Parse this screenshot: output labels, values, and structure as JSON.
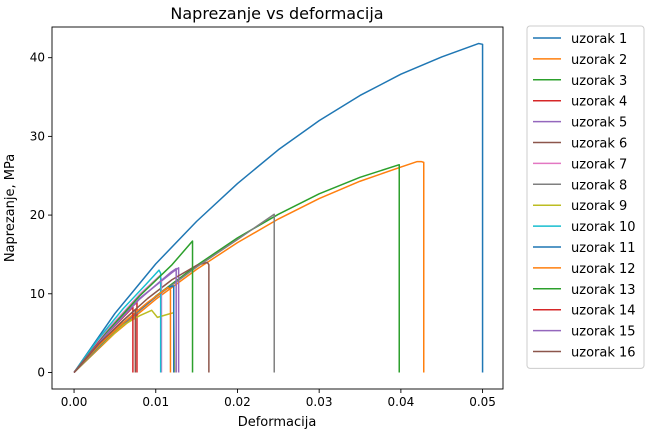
{
  "chart_data": {
    "type": "line",
    "title": "Naprezanje vs deformacija",
    "xlabel": "Deformacija",
    "ylabel": "Naprezanje, MPa",
    "xlim": [
      -0.0027,
      0.0525
    ],
    "ylim": [
      -2.1,
      43.9
    ],
    "xticks": [
      0.0,
      0.01,
      0.02,
      0.03,
      0.04,
      0.05
    ],
    "xtick_labels": [
      "0.00",
      "0.01",
      "0.02",
      "0.03",
      "0.04",
      "0.05"
    ],
    "yticks": [
      0,
      10,
      20,
      30,
      40
    ],
    "ytick_labels": [
      "0",
      "10",
      "20",
      "30",
      "40"
    ],
    "grid": false,
    "legend_position": "outside-right",
    "series": [
      {
        "name": "uzorak 1",
        "color": "#1f77b4",
        "points": [
          [
            0,
            0
          ],
          [
            0.005,
            7.5
          ],
          [
            0.01,
            13.8
          ],
          [
            0.015,
            19.2
          ],
          [
            0.02,
            24.0
          ],
          [
            0.025,
            28.3
          ],
          [
            0.03,
            32.0
          ],
          [
            0.035,
            35.2
          ],
          [
            0.04,
            37.9
          ],
          [
            0.045,
            40.1
          ],
          [
            0.0495,
            41.8
          ],
          [
            0.05,
            41.7
          ],
          [
            0.05,
            0
          ]
        ]
      },
      {
        "name": "uzorak 2",
        "color": "#ff7f0e",
        "points": [
          [
            0,
            0
          ],
          [
            0.005,
            5.0
          ],
          [
            0.01,
            9.3
          ],
          [
            0.015,
            13.1
          ],
          [
            0.02,
            16.5
          ],
          [
            0.025,
            19.5
          ],
          [
            0.03,
            22.1
          ],
          [
            0.035,
            24.3
          ],
          [
            0.04,
            26.1
          ],
          [
            0.042,
            26.8
          ],
          [
            0.0425,
            26.8
          ],
          [
            0.0428,
            26.7
          ],
          [
            0.0428,
            0
          ]
        ]
      },
      {
        "name": "uzorak 3",
        "color": "#2ca02c",
        "points": [
          [
            0,
            0
          ],
          [
            0.005,
            5.2
          ],
          [
            0.01,
            9.7
          ],
          [
            0.015,
            13.6
          ],
          [
            0.02,
            17.1
          ],
          [
            0.025,
            20.1
          ],
          [
            0.03,
            22.7
          ],
          [
            0.035,
            24.8
          ],
          [
            0.0398,
            26.4
          ],
          [
            0.0398,
            0
          ]
        ]
      },
      {
        "name": "uzorak 4",
        "color": "#d62728",
        "points": [
          [
            0,
            0
          ],
          [
            0.003,
            3.9
          ],
          [
            0.006,
            7.4
          ],
          [
            0.0077,
            8.9
          ],
          [
            0.0077,
            0
          ]
        ]
      },
      {
        "name": "uzorak 5",
        "color": "#9467bd",
        "points": [
          [
            0,
            0
          ],
          [
            0.004,
            5.0
          ],
          [
            0.008,
            9.4
          ],
          [
            0.012,
            12.7
          ],
          [
            0.0128,
            13.3
          ],
          [
            0.0128,
            0
          ]
        ]
      },
      {
        "name": "uzorak 6",
        "color": "#8c564b",
        "points": [
          [
            0,
            0
          ],
          [
            0.003,
            3.5
          ],
          [
            0.006,
            6.6
          ],
          [
            0.009,
            9.4
          ],
          [
            0.012,
            11.8
          ],
          [
            0.015,
            13.6
          ],
          [
            0.0163,
            14.0
          ],
          [
            0.0165,
            13.7
          ],
          [
            0.0165,
            0
          ]
        ]
      },
      {
        "name": "uzorak 7",
        "color": "#e377c2",
        "points": [
          [
            0,
            0
          ],
          [
            0.004,
            5.3
          ],
          [
            0.008,
            9.9
          ],
          [
            0.0105,
            12.3
          ],
          [
            0.0107,
            11.8
          ],
          [
            0.0107,
            0
          ]
        ]
      },
      {
        "name": "uzorak 8",
        "color": "#7f7f7f",
        "points": [
          [
            0,
            0
          ],
          [
            0.005,
            5.2
          ],
          [
            0.01,
            9.6
          ],
          [
            0.015,
            13.4
          ],
          [
            0.02,
            16.9
          ],
          [
            0.0245,
            20.1
          ],
          [
            0.0245,
            0
          ]
        ]
      },
      {
        "name": "uzorak 9",
        "color": "#bcbd22",
        "points": [
          [
            0,
            0
          ],
          [
            0.003,
            3.2
          ],
          [
            0.006,
            6.0
          ],
          [
            0.008,
            7.2
          ],
          [
            0.0095,
            7.9
          ],
          [
            0.0102,
            7.0
          ],
          [
            0.0115,
            7.4
          ],
          [
            0.0122,
            7.6
          ],
          [
            0.0123,
            0
          ]
        ]
      },
      {
        "name": "uzorak 10",
        "color": "#17becf",
        "points": [
          [
            0,
            0
          ],
          [
            0.003,
            4.3
          ],
          [
            0.006,
            8.1
          ],
          [
            0.0088,
            11.2
          ],
          [
            0.0104,
            13.0
          ],
          [
            0.0106,
            12.6
          ],
          [
            0.0106,
            0
          ]
        ]
      },
      {
        "name": "uzorak 11",
        "color": "#1f77b4",
        "points": [
          [
            0,
            0
          ],
          [
            0.003,
            3.3
          ],
          [
            0.006,
            6.3
          ],
          [
            0.009,
            8.8
          ],
          [
            0.0115,
            10.8
          ],
          [
            0.0122,
            11.0
          ],
          [
            0.0122,
            0
          ]
        ]
      },
      {
        "name": "uzorak 12",
        "color": "#ff7f0e",
        "points": [
          [
            0,
            0
          ],
          [
            0.003,
            3.4
          ],
          [
            0.006,
            6.3
          ],
          [
            0.009,
            8.9
          ],
          [
            0.0115,
            10.8
          ],
          [
            0.0118,
            10.5
          ],
          [
            0.0118,
            0
          ]
        ]
      },
      {
        "name": "uzorak 13",
        "color": "#2ca02c",
        "points": [
          [
            0,
            0
          ],
          [
            0.004,
            5.1
          ],
          [
            0.008,
            9.7
          ],
          [
            0.012,
            13.7
          ],
          [
            0.0145,
            16.7
          ],
          [
            0.0145,
            0
          ]
        ]
      },
      {
        "name": "uzorak 14",
        "color": "#d62728",
        "points": [
          [
            0,
            0
          ],
          [
            0.003,
            3.8
          ],
          [
            0.006,
            7.0
          ],
          [
            0.0072,
            8.3
          ],
          [
            0.0072,
            0
          ]
        ]
      },
      {
        "name": "uzorak 15",
        "color": "#9467bd",
        "points": [
          [
            0,
            0
          ],
          [
            0.004,
            4.9
          ],
          [
            0.008,
            9.3
          ],
          [
            0.0118,
            12.7
          ],
          [
            0.0125,
            13.2
          ],
          [
            0.0125,
            0
          ]
        ]
      },
      {
        "name": "uzorak 16",
        "color": "#8c564b",
        "points": [
          [
            0,
            0
          ],
          [
            0.003,
            3.6
          ],
          [
            0.006,
            6.6
          ],
          [
            0.0075,
            8.0
          ],
          [
            0.0075,
            0
          ]
        ]
      }
    ]
  }
}
